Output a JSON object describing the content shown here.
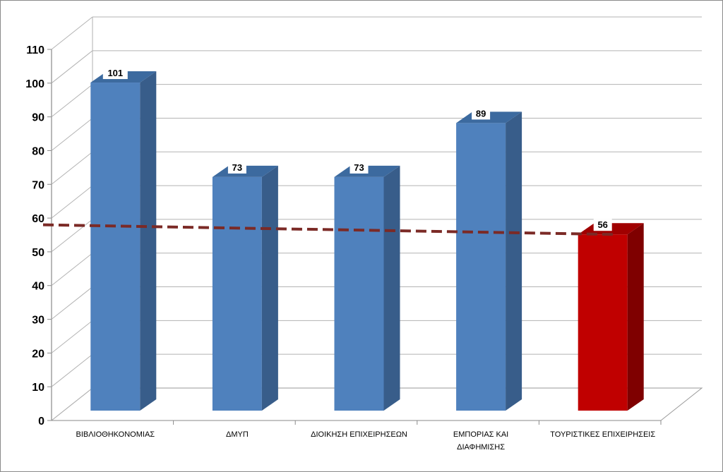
{
  "chart_data": {
    "type": "bar",
    "categories": [
      [
        "ΒΙΒΛΙΟΘΗΚΟΝΟΜΙΑΣ"
      ],
      [
        "ΔΜΥΠ"
      ],
      [
        "ΔΙΟΙΚΗΣΗ ΕΠΙΧΕΙΡΗΣΕΩΝ"
      ],
      [
        "ΕΜΠΟΡΙΑΣ ΚΑΙ",
        "ΔΙΑΦΗΜΙΣΗΣ"
      ],
      [
        "ΤΟΥΡΙΣΤΙΚΕΣ ΕΠΙΧΕΙΡΗΣΕΙΣ"
      ]
    ],
    "values": [
      101,
      73,
      73,
      89,
      56
    ],
    "data_labels": [
      "101",
      "73",
      "73",
      "89",
      "56"
    ],
    "bar_colors": [
      "#4f81bd",
      "#4f81bd",
      "#4f81bd",
      "#4f81bd",
      "#c00000"
    ],
    "bar_side_colors": [
      "#385d8a",
      "#385d8a",
      "#385d8a",
      "#385d8a",
      "#7f0000"
    ],
    "bar_top_colors": [
      "#3c6a9f",
      "#3c6a9f",
      "#3c6a9f",
      "#3c6a9f",
      "#a00000"
    ],
    "ylim": [
      0,
      110
    ],
    "yticks": [
      0,
      10,
      20,
      30,
      40,
      50,
      60,
      70,
      80,
      90,
      100,
      110
    ],
    "grid": true,
    "legend": "none",
    "title": "",
    "xlabel": "",
    "ylabel": "",
    "reference_line": {
      "style": "dashed",
      "color": "#7b2a26",
      "start_value": 58,
      "end_value": 56
    }
  }
}
